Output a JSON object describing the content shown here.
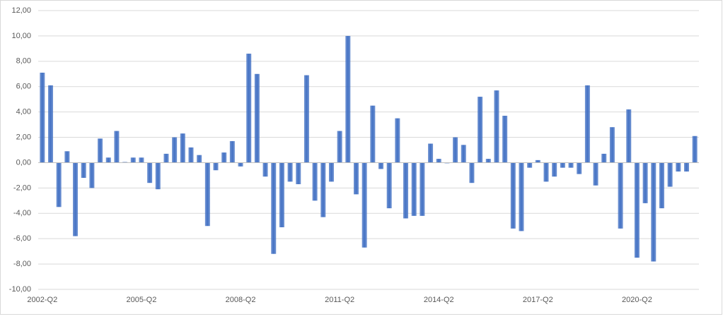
{
  "chart_data": {
    "type": "bar",
    "categories": [
      "2002-Q2",
      null,
      null,
      null,
      null,
      null,
      null,
      null,
      null,
      null,
      null,
      null,
      "2005-Q2",
      null,
      null,
      null,
      null,
      null,
      null,
      null,
      null,
      null,
      null,
      null,
      "2008-Q2",
      null,
      null,
      null,
      null,
      null,
      null,
      null,
      null,
      null,
      null,
      null,
      "2011-Q2",
      null,
      null,
      null,
      null,
      null,
      null,
      null,
      null,
      null,
      null,
      null,
      "2014-Q2",
      null,
      null,
      null,
      null,
      null,
      null,
      null,
      null,
      null,
      null,
      null,
      "2017-Q2",
      null,
      null,
      null,
      null,
      null,
      null,
      null,
      null,
      null,
      null,
      null,
      "2020-Q2",
      null,
      null,
      null,
      null,
      null,
      null,
      null
    ],
    "values": [
      7.1,
      6.1,
      -3.5,
      0.9,
      -5.8,
      -1.2,
      -2.0,
      1.9,
      0.4,
      2.5,
      0.05,
      0.4,
      0.4,
      -1.6,
      -2.1,
      0.7,
      2.0,
      2.3,
      1.2,
      0.6,
      -5.0,
      -0.6,
      0.8,
      1.7,
      -0.3,
      8.6,
      7.0,
      -1.1,
      -7.2,
      -5.1,
      -1.5,
      -1.7,
      6.9,
      -3.0,
      -4.3,
      -1.5,
      2.5,
      10.0,
      -2.5,
      -6.7,
      4.5,
      -0.5,
      -3.6,
      3.5,
      -4.4,
      -4.2,
      -4.2,
      1.5,
      0.3,
      -0.05,
      2.0,
      1.4,
      -1.6,
      5.2,
      0.3,
      5.7,
      3.7,
      -5.2,
      -5.4,
      -0.4,
      0.2,
      -1.5,
      -1.1,
      -0.4,
      -0.4,
      -0.9,
      6.1,
      -1.8,
      0.7,
      2.8,
      -5.2,
      4.2,
      -7.5,
      -3.2,
      -7.8,
      -3.6,
      -1.9,
      -0.7,
      -0.7,
      2.1
    ],
    "color": "#4472c4",
    "ylim": [
      -10,
      12
    ],
    "yticks": [
      {
        "value": -10,
        "label": "-10,00"
      },
      {
        "value": -8,
        "label": "-8,00"
      },
      {
        "value": -6,
        "label": "-6,00"
      },
      {
        "value": -4,
        "label": "-4,00"
      },
      {
        "value": -2,
        "label": "-2,00"
      },
      {
        "value": 0,
        "label": "0,00"
      },
      {
        "value": 2,
        "label": "2,00"
      },
      {
        "value": 4,
        "label": "4,00"
      },
      {
        "value": 6,
        "label": "6,00"
      },
      {
        "value": 8,
        "label": "8,00"
      },
      {
        "value": 10,
        "label": "10,00"
      },
      {
        "value": 12,
        "label": "12,00"
      }
    ],
    "grid": true
  }
}
